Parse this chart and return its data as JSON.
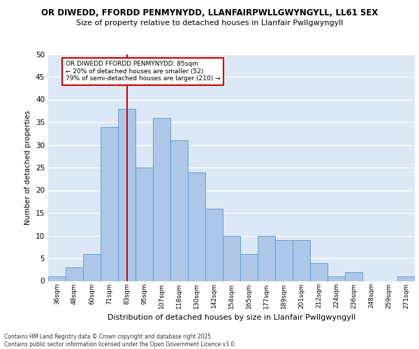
{
  "title_line1": "OR DIWEDD, FFORDD PENMYNYDD, LLANFAIRPWLLGWYNGYLL, LL61 5EX",
  "title_line2": "Size of property relative to detached houses in Llanfair Pwllgwyngyll",
  "xlabel": "Distribution of detached houses by size in Llanfair Pwllgwyngyll",
  "ylabel": "Number of detached properties",
  "bar_color": "#aec6e8",
  "bar_edge_color": "#5599cc",
  "background_color": "#dce8f5",
  "grid_color": "#ffffff",
  "categories": [
    "36sqm",
    "48sqm",
    "60sqm",
    "71sqm",
    "83sqm",
    "95sqm",
    "107sqm",
    "118sqm",
    "130sqm",
    "142sqm",
    "154sqm",
    "165sqm",
    "177sqm",
    "189sqm",
    "201sqm",
    "212sqm",
    "224sqm",
    "236sqm",
    "248sqm",
    "259sqm",
    "271sqm"
  ],
  "values": [
    1,
    3,
    6,
    34,
    38,
    25,
    36,
    31,
    24,
    16,
    10,
    6,
    10,
    9,
    9,
    4,
    1,
    2,
    0,
    0,
    1
  ],
  "ylim": [
    0,
    50
  ],
  "yticks": [
    0,
    5,
    10,
    15,
    20,
    25,
    30,
    35,
    40,
    45,
    50
  ],
  "vline_x": 4,
  "vline_color": "#cc0000",
  "annotation_line1": "OR DIWEDD FFORDD PENMYNYDD: 85sqm",
  "annotation_line2": "← 20% of detached houses are smaller (52)",
  "annotation_line3": "79% of semi-detached houses are larger (210) →",
  "annotation_box_color": "#cc0000",
  "footer_text": "Contains HM Land Registry data © Crown copyright and database right 2025.\nContains public sector information licensed under the Open Government Licence v3.0."
}
